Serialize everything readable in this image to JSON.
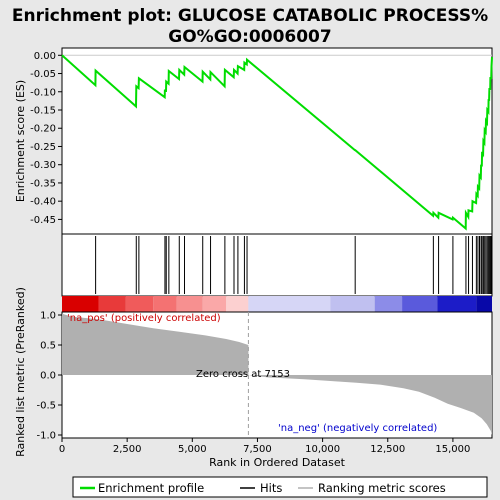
{
  "chart_data": {
    "type": "line",
    "title_line1": "Enrichment plot: GLUCOSE CATABOLIC PROCESS%",
    "title_line2": "GO%GO:0006007",
    "es_panel": {
      "ylabel": "Enrichment score (ES)",
      "ylim": [
        -0.49,
        0.02
      ],
      "yticks": [
        0.0,
        -0.05,
        -0.1,
        -0.15,
        -0.2,
        -0.25,
        -0.3,
        -0.35,
        -0.4,
        -0.45
      ],
      "ytick_labels": [
        "0.00",
        "-0.05",
        "-0.10",
        "-0.15",
        "-0.20",
        "-0.25",
        "-0.30",
        "-0.35",
        "-0.40",
        "-0.45"
      ],
      "color": "#00dd00"
    },
    "hits": [
      1290,
      2850,
      2950,
      3950,
      4000,
      4100,
      4500,
      4700,
      5400,
      5700,
      6250,
      6600,
      6750,
      7000,
      7100,
      11250,
      14250,
      14450,
      15000,
      15500,
      15600,
      15750,
      15900,
      15960,
      16020,
      16080,
      16120,
      16170,
      16220,
      16270,
      16320,
      16370,
      16400,
      16440,
      16480
    ],
    "es_curve": [
      [
        0,
        0.0
      ],
      [
        1280,
        -0.082
      ],
      [
        1290,
        -0.042
      ],
      [
        2840,
        -0.14
      ],
      [
        2850,
        -0.085
      ],
      [
        2940,
        -0.09
      ],
      [
        2950,
        -0.063
      ],
      [
        3940,
        -0.115
      ],
      [
        3950,
        -0.094
      ],
      [
        3990,
        -0.1
      ],
      [
        4000,
        -0.072
      ],
      [
        4090,
        -0.078
      ],
      [
        4100,
        -0.043
      ],
      [
        4490,
        -0.065
      ],
      [
        4500,
        -0.04
      ],
      [
        4690,
        -0.053
      ],
      [
        4700,
        -0.032
      ],
      [
        5390,
        -0.072
      ],
      [
        5400,
        -0.045
      ],
      [
        5690,
        -0.066
      ],
      [
        5700,
        -0.046
      ],
      [
        6240,
        -0.085
      ],
      [
        6250,
        -0.04
      ],
      [
        6590,
        -0.06
      ],
      [
        6600,
        -0.04
      ],
      [
        6740,
        -0.05
      ],
      [
        6750,
        -0.03
      ],
      [
        6990,
        -0.04
      ],
      [
        7000,
        -0.02
      ],
      [
        7090,
        -0.025
      ],
      [
        7100,
        -0.012
      ],
      [
        11240,
        -0.26
      ],
      [
        11250,
        -0.26
      ],
      [
        14240,
        -0.44
      ],
      [
        14250,
        -0.432
      ],
      [
        14440,
        -0.445
      ],
      [
        14450,
        -0.432
      ],
      [
        14990,
        -0.45
      ],
      [
        15000,
        -0.445
      ],
      [
        15490,
        -0.475
      ],
      [
        15500,
        -0.432
      ],
      [
        15590,
        -0.443
      ],
      [
        15600,
        -0.425
      ],
      [
        15740,
        -0.428
      ],
      [
        15750,
        -0.4
      ],
      [
        15890,
        -0.405
      ],
      [
        15900,
        -0.38
      ],
      [
        15950,
        -0.385
      ],
      [
        15960,
        -0.36
      ],
      [
        16010,
        -0.365
      ],
      [
        16020,
        -0.33
      ],
      [
        16070,
        -0.335
      ],
      [
        16080,
        -0.3
      ],
      [
        16110,
        -0.305
      ],
      [
        16120,
        -0.265
      ],
      [
        16160,
        -0.27
      ],
      [
        16170,
        -0.235
      ],
      [
        16210,
        -0.24
      ],
      [
        16220,
        -0.205
      ],
      [
        16260,
        -0.21
      ],
      [
        16270,
        -0.18
      ],
      [
        16310,
        -0.185
      ],
      [
        16320,
        -0.15
      ],
      [
        16360,
        -0.155
      ],
      [
        16370,
        -0.12
      ],
      [
        16390,
        -0.125
      ],
      [
        16400,
        -0.09
      ],
      [
        16430,
        -0.095
      ],
      [
        16440,
        -0.06
      ],
      [
        16470,
        -0.065
      ],
      [
        16480,
        -0.03
      ],
      [
        16500,
        -0.005
      ]
    ],
    "heat_bands": [
      {
        "from": 0,
        "to": 1400,
        "color": "#d90000"
      },
      {
        "from": 1400,
        "to": 2450,
        "color": "#e83a3a"
      },
      {
        "from": 2450,
        "to": 3500,
        "color": "#f05b5b"
      },
      {
        "from": 3500,
        "to": 4400,
        "color": "#f47272"
      },
      {
        "from": 4400,
        "to": 5400,
        "color": "#f79090"
      },
      {
        "from": 5400,
        "to": 6300,
        "color": "#faa8a8"
      },
      {
        "from": 6300,
        "to": 7150,
        "color": "#fcd0d0"
      },
      {
        "from": 7150,
        "to": 10300,
        "color": "#d6d6f6"
      },
      {
        "from": 10300,
        "to": 12000,
        "color": "#c0c0f0"
      },
      {
        "from": 12000,
        "to": 13050,
        "color": "#8c8ce8"
      },
      {
        "from": 13050,
        "to": 14400,
        "color": "#5a5adc"
      },
      {
        "from": 14400,
        "to": 15900,
        "color": "#1c1cc8"
      },
      {
        "from": 15900,
        "to": 16500,
        "color": "#0808a8"
      }
    ],
    "metric_panel": {
      "ylabel": "Ranked list metric (PreRanked)",
      "ylim": [
        -1.05,
        1.05
      ],
      "yticks": [
        1.0,
        0.5,
        0.0,
        -0.5,
        -1.0
      ],
      "ytick_labels": [
        "1.0",
        "0.5",
        "0.0",
        "-0.5",
        "-1.0"
      ],
      "metric_curve": [
        [
          0,
          1.02
        ],
        [
          400,
          0.97
        ],
        [
          1400,
          0.93
        ],
        [
          2500,
          0.85
        ],
        [
          3500,
          0.78
        ],
        [
          4500,
          0.72
        ],
        [
          5500,
          0.66
        ],
        [
          6300,
          0.6
        ],
        [
          6800,
          0.55
        ],
        [
          7153,
          0.5
        ],
        [
          7154,
          0.0
        ],
        [
          7900,
          -0.04
        ],
        [
          9300,
          -0.07
        ],
        [
          10300,
          -0.1
        ],
        [
          11300,
          -0.13
        ],
        [
          12200,
          -0.16
        ],
        [
          13100,
          -0.22
        ],
        [
          13700,
          -0.28
        ],
        [
          14300,
          -0.38
        ],
        [
          14800,
          -0.48
        ],
        [
          15300,
          -0.55
        ],
        [
          15800,
          -0.63
        ],
        [
          16100,
          -0.72
        ],
        [
          16300,
          -0.82
        ],
        [
          16450,
          -0.93
        ],
        [
          16500,
          -1.0
        ]
      ],
      "pos_label": "'na_pos' (positively correlated)",
      "neg_label": "'na_neg' (negatively correlated)",
      "zero_cross_label": "Zero cross at 7153",
      "zero_cross": 7153
    },
    "xlabel": "Rank in Ordered Dataset",
    "xlim": [
      0,
      16500
    ],
    "xticks": [
      0,
      2500,
      5000,
      7500,
      10000,
      12500,
      15000
    ],
    "xtick_labels": [
      "0",
      "2,500",
      "5,000",
      "7,500",
      "10,000",
      "12,500",
      "15,000"
    ],
    "legend": [
      "Enrichment profile",
      "Hits",
      "Ranking metric scores"
    ]
  }
}
